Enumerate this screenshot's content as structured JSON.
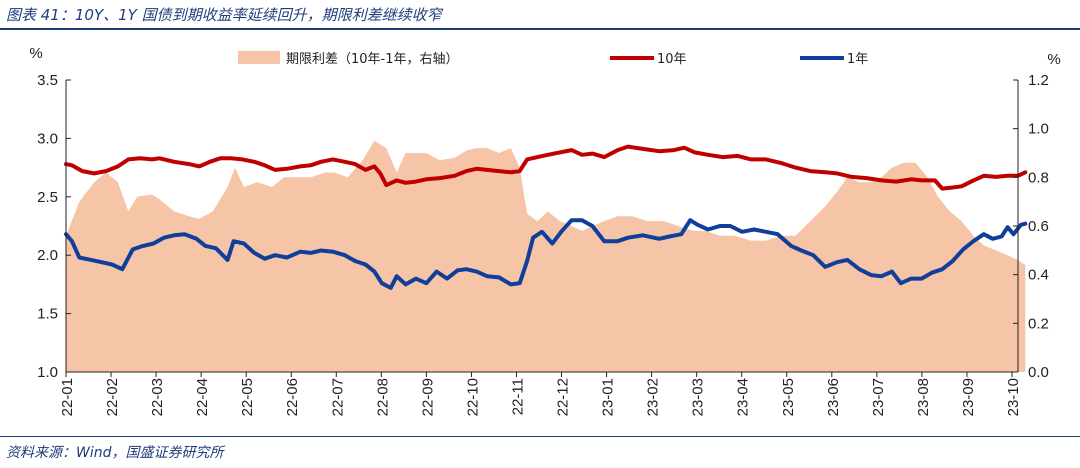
{
  "header": {
    "title": "图表 41：10Y、1Y 国债到期收益率延续回升，期限利差继续收窄"
  },
  "footer": {
    "source": "资料来源：Wind，国盛证券研究所"
  },
  "colors": {
    "spread_fill": "#f6c4a6",
    "line_10y": "#c00000",
    "line_1y": "#0f3f9b",
    "accent": "#1f3d7a"
  },
  "chart_data": {
    "type": "line",
    "left_axis": {
      "unit": "%",
      "ylim": [
        1.0,
        3.5
      ],
      "ticks": [
        "3.5",
        "3.0",
        "2.5",
        "2.0",
        "1.5",
        "1.0"
      ]
    },
    "right_axis": {
      "unit": "%",
      "ylim": [
        0.0,
        1.2
      ],
      "ticks": [
        "1.2",
        "1.0",
        "0.8",
        "0.6",
        "0.4",
        "0.2",
        "0.0"
      ]
    },
    "x_tick_labels": [
      "22-01",
      "22-02",
      "22-03",
      "22-04",
      "22-05",
      "22-06",
      "22-07",
      "22-08",
      "22-09",
      "22-10",
      "22-11",
      "22-12",
      "23-01",
      "23-02",
      "23-03",
      "23-04",
      "23-05",
      "23-06",
      "23-07",
      "23-08",
      "23-09",
      "23-10"
    ],
    "legend_position": "top",
    "grid": false,
    "series": [
      {
        "name": "期限利差（10年-1年，右轴）",
        "type": "area",
        "axis": "right",
        "points": [
          [
            "22-01-01",
            0.56
          ],
          [
            "22-01-10",
            0.7
          ],
          [
            "22-01-20",
            0.78
          ],
          [
            "22-01-28",
            0.82
          ],
          [
            "22-02-05",
            0.78
          ],
          [
            "22-02-12",
            0.66
          ],
          [
            "22-02-18",
            0.72
          ],
          [
            "22-02-28",
            0.73
          ],
          [
            "22-03-05",
            0.71
          ],
          [
            "22-03-15",
            0.66
          ],
          [
            "22-03-25",
            0.64
          ],
          [
            "22-04-01",
            0.63
          ],
          [
            "22-04-10",
            0.66
          ],
          [
            "22-04-20",
            0.76
          ],
          [
            "22-04-25",
            0.84
          ],
          [
            "22-05-01",
            0.76
          ],
          [
            "22-05-10",
            0.78
          ],
          [
            "22-05-20",
            0.76
          ],
          [
            "22-05-28",
            0.8
          ],
          [
            "22-06-05",
            0.8
          ],
          [
            "22-06-15",
            0.8
          ],
          [
            "22-06-25",
            0.82
          ],
          [
            "22-07-01",
            0.82
          ],
          [
            "22-07-10",
            0.8
          ],
          [
            "22-07-20",
            0.87
          ],
          [
            "22-07-28",
            0.95
          ],
          [
            "22-08-05",
            0.92
          ],
          [
            "22-08-12",
            0.82
          ],
          [
            "22-08-18",
            0.9
          ],
          [
            "22-08-25",
            0.9
          ],
          [
            "22-09-01",
            0.9
          ],
          [
            "22-09-10",
            0.87
          ],
          [
            "22-09-20",
            0.88
          ],
          [
            "22-09-28",
            0.91
          ],
          [
            "22-10-05",
            0.92
          ],
          [
            "22-10-12",
            0.92
          ],
          [
            "22-10-20",
            0.9
          ],
          [
            "22-10-28",
            0.92
          ],
          [
            "22-11-03",
            0.84
          ],
          [
            "22-11-08",
            0.65
          ],
          [
            "22-11-15",
            0.62
          ],
          [
            "22-11-22",
            0.66
          ],
          [
            "22-11-30",
            0.62
          ],
          [
            "22-12-08",
            0.6
          ],
          [
            "22-12-15",
            0.58
          ],
          [
            "22-12-22",
            0.6
          ],
          [
            "22-12-30",
            0.62
          ],
          [
            "23-01-08",
            0.64
          ],
          [
            "23-01-18",
            0.64
          ],
          [
            "23-01-28",
            0.62
          ],
          [
            "23-02-08",
            0.62
          ],
          [
            "23-02-18",
            0.6
          ],
          [
            "23-02-28",
            0.58
          ],
          [
            "23-03-08",
            0.58
          ],
          [
            "23-03-18",
            0.56
          ],
          [
            "23-03-28",
            0.56
          ],
          [
            "23-04-08",
            0.54
          ],
          [
            "23-04-18",
            0.54
          ],
          [
            "23-04-28",
            0.56
          ],
          [
            "23-05-08",
            0.56
          ],
          [
            "23-05-18",
            0.62
          ],
          [
            "23-05-28",
            0.68
          ],
          [
            "23-06-05",
            0.74
          ],
          [
            "23-06-12",
            0.8
          ],
          [
            "23-06-20",
            0.78
          ],
          [
            "23-06-28",
            0.78
          ],
          [
            "23-07-05",
            0.8
          ],
          [
            "23-07-12",
            0.84
          ],
          [
            "23-07-20",
            0.86
          ],
          [
            "23-07-28",
            0.86
          ],
          [
            "23-08-05",
            0.8
          ],
          [
            "23-08-12",
            0.72
          ],
          [
            "23-08-20",
            0.66
          ],
          [
            "23-08-28",
            0.62
          ],
          [
            "23-09-05",
            0.56
          ],
          [
            "23-09-12",
            0.52
          ],
          [
            "23-09-20",
            0.5
          ],
          [
            "23-09-28",
            0.48
          ],
          [
            "23-10-05",
            0.46
          ],
          [
            "23-10-10",
            0.44
          ]
        ]
      },
      {
        "name": "10年",
        "type": "line",
        "axis": "left",
        "points": [
          [
            "22-01-01",
            2.78
          ],
          [
            "22-01-05",
            2.77
          ],
          [
            "22-01-12",
            2.72
          ],
          [
            "22-01-20",
            2.7
          ],
          [
            "22-01-28",
            2.72
          ],
          [
            "22-02-05",
            2.76
          ],
          [
            "22-02-12",
            2.82
          ],
          [
            "22-02-20",
            2.83
          ],
          [
            "22-02-28",
            2.82
          ],
          [
            "22-03-05",
            2.83
          ],
          [
            "22-03-15",
            2.8
          ],
          [
            "22-03-25",
            2.78
          ],
          [
            "22-04-01",
            2.76
          ],
          [
            "22-04-08",
            2.8
          ],
          [
            "22-04-15",
            2.83
          ],
          [
            "22-04-22",
            2.83
          ],
          [
            "22-04-30",
            2.82
          ],
          [
            "22-05-08",
            2.8
          ],
          [
            "22-05-15",
            2.77
          ],
          [
            "22-05-22",
            2.73
          ],
          [
            "22-05-30",
            2.74
          ],
          [
            "22-06-08",
            2.76
          ],
          [
            "22-06-15",
            2.77
          ],
          [
            "22-06-22",
            2.8
          ],
          [
            "22-06-30",
            2.82
          ],
          [
            "22-07-08",
            2.8
          ],
          [
            "22-07-15",
            2.78
          ],
          [
            "22-07-22",
            2.73
          ],
          [
            "22-07-28",
            2.76
          ],
          [
            "22-08-01",
            2.7
          ],
          [
            "22-08-05",
            2.6
          ],
          [
            "22-08-12",
            2.64
          ],
          [
            "22-08-18",
            2.62
          ],
          [
            "22-08-25",
            2.63
          ],
          [
            "22-09-01",
            2.65
          ],
          [
            "22-09-10",
            2.66
          ],
          [
            "22-09-20",
            2.68
          ],
          [
            "22-09-28",
            2.72
          ],
          [
            "22-10-05",
            2.74
          ],
          [
            "22-10-12",
            2.73
          ],
          [
            "22-10-20",
            2.72
          ],
          [
            "22-10-28",
            2.71
          ],
          [
            "22-11-03",
            2.72
          ],
          [
            "22-11-08",
            2.82
          ],
          [
            "22-11-15",
            2.84
          ],
          [
            "22-11-22",
            2.86
          ],
          [
            "22-11-30",
            2.88
          ],
          [
            "22-12-08",
            2.9
          ],
          [
            "22-12-15",
            2.86
          ],
          [
            "22-12-22",
            2.87
          ],
          [
            "22-12-30",
            2.84
          ],
          [
            "23-01-08",
            2.9
          ],
          [
            "23-01-15",
            2.93
          ],
          [
            "23-01-25",
            2.91
          ],
          [
            "23-02-05",
            2.89
          ],
          [
            "23-02-15",
            2.9
          ],
          [
            "23-02-22",
            2.92
          ],
          [
            "23-03-01",
            2.88
          ],
          [
            "23-03-10",
            2.86
          ],
          [
            "23-03-20",
            2.84
          ],
          [
            "23-03-30",
            2.85
          ],
          [
            "23-04-08",
            2.82
          ],
          [
            "23-04-18",
            2.82
          ],
          [
            "23-04-28",
            2.79
          ],
          [
            "23-05-08",
            2.75
          ],
          [
            "23-05-18",
            2.72
          ],
          [
            "23-05-28",
            2.71
          ],
          [
            "23-06-05",
            2.7
          ],
          [
            "23-06-15",
            2.67
          ],
          [
            "23-06-25",
            2.66
          ],
          [
            "23-07-05",
            2.64
          ],
          [
            "23-07-15",
            2.63
          ],
          [
            "23-07-25",
            2.65
          ],
          [
            "23-08-01",
            2.64
          ],
          [
            "23-08-10",
            2.64
          ],
          [
            "23-08-15",
            2.57
          ],
          [
            "23-08-22",
            2.58
          ],
          [
            "23-08-28",
            2.59
          ],
          [
            "23-09-05",
            2.64
          ],
          [
            "23-09-12",
            2.68
          ],
          [
            "23-09-20",
            2.67
          ],
          [
            "23-09-28",
            2.68
          ],
          [
            "23-10-05",
            2.68
          ],
          [
            "23-10-10",
            2.71
          ]
        ]
      },
      {
        "name": "1年",
        "type": "line",
        "axis": "left",
        "points": [
          [
            "22-01-01",
            2.18
          ],
          [
            "22-01-05",
            2.12
          ],
          [
            "22-01-10",
            1.98
          ],
          [
            "22-01-18",
            1.96
          ],
          [
            "22-01-25",
            1.94
          ],
          [
            "22-02-01",
            1.92
          ],
          [
            "22-02-08",
            1.88
          ],
          [
            "22-02-15",
            2.05
          ],
          [
            "22-02-22",
            2.08
          ],
          [
            "22-03-01",
            2.1
          ],
          [
            "22-03-08",
            2.15
          ],
          [
            "22-03-15",
            2.17
          ],
          [
            "22-03-22",
            2.18
          ],
          [
            "22-03-30",
            2.14
          ],
          [
            "22-04-05",
            2.08
          ],
          [
            "22-04-12",
            2.06
          ],
          [
            "22-04-20",
            1.96
          ],
          [
            "22-04-24",
            2.12
          ],
          [
            "22-05-01",
            2.1
          ],
          [
            "22-05-08",
            2.02
          ],
          [
            "22-05-15",
            1.97
          ],
          [
            "22-05-22",
            2.0
          ],
          [
            "22-05-30",
            1.98
          ],
          [
            "22-06-08",
            2.03
          ],
          [
            "22-06-15",
            2.02
          ],
          [
            "22-06-22",
            2.04
          ],
          [
            "22-06-30",
            2.03
          ],
          [
            "22-07-08",
            2.0
          ],
          [
            "22-07-15",
            1.95
          ],
          [
            "22-07-22",
            1.92
          ],
          [
            "22-07-28",
            1.86
          ],
          [
            "22-08-02",
            1.76
          ],
          [
            "22-08-08",
            1.72
          ],
          [
            "22-08-12",
            1.82
          ],
          [
            "22-08-18",
            1.75
          ],
          [
            "22-08-25",
            1.8
          ],
          [
            "22-09-01",
            1.76
          ],
          [
            "22-09-08",
            1.86
          ],
          [
            "22-09-15",
            1.8
          ],
          [
            "22-09-22",
            1.87
          ],
          [
            "22-09-28",
            1.88
          ],
          [
            "22-10-05",
            1.86
          ],
          [
            "22-10-12",
            1.82
          ],
          [
            "22-10-20",
            1.81
          ],
          [
            "22-10-28",
            1.75
          ],
          [
            "22-11-03",
            1.76
          ],
          [
            "22-11-08",
            1.95
          ],
          [
            "22-11-12",
            2.15
          ],
          [
            "22-11-18",
            2.2
          ],
          [
            "22-11-25",
            2.1
          ],
          [
            "22-12-01",
            2.2
          ],
          [
            "22-12-08",
            2.3
          ],
          [
            "22-12-15",
            2.3
          ],
          [
            "22-12-22",
            2.25
          ],
          [
            "22-12-30",
            2.12
          ],
          [
            "23-01-08",
            2.12
          ],
          [
            "23-01-15",
            2.15
          ],
          [
            "23-01-25",
            2.17
          ],
          [
            "23-02-05",
            2.14
          ],
          [
            "23-02-12",
            2.16
          ],
          [
            "23-02-20",
            2.18
          ],
          [
            "23-02-26",
            2.3
          ],
          [
            "23-03-03",
            2.26
          ],
          [
            "23-03-10",
            2.22
          ],
          [
            "23-03-18",
            2.25
          ],
          [
            "23-03-25",
            2.25
          ],
          [
            "23-04-02",
            2.2
          ],
          [
            "23-04-10",
            2.22
          ],
          [
            "23-04-18",
            2.2
          ],
          [
            "23-04-26",
            2.18
          ],
          [
            "23-05-05",
            2.08
          ],
          [
            "23-05-12",
            2.04
          ],
          [
            "23-05-20",
            2.0
          ],
          [
            "23-05-28",
            1.9
          ],
          [
            "23-06-05",
            1.94
          ],
          [
            "23-06-12",
            1.96
          ],
          [
            "23-06-20",
            1.88
          ],
          [
            "23-06-28",
            1.83
          ],
          [
            "23-07-05",
            1.82
          ],
          [
            "23-07-12",
            1.86
          ],
          [
            "23-07-18",
            1.76
          ],
          [
            "23-07-25",
            1.8
          ],
          [
            "23-08-01",
            1.8
          ],
          [
            "23-08-08",
            1.85
          ],
          [
            "23-08-15",
            1.88
          ],
          [
            "23-08-22",
            1.95
          ],
          [
            "23-08-29",
            2.05
          ],
          [
            "23-09-05",
            2.12
          ],
          [
            "23-09-12",
            2.18
          ],
          [
            "23-09-18",
            2.14
          ],
          [
            "23-09-24",
            2.16
          ],
          [
            "23-09-28",
            2.24
          ],
          [
            "23-10-02",
            2.18
          ],
          [
            "23-10-07",
            2.26
          ],
          [
            "23-10-10",
            2.27
          ]
        ]
      }
    ]
  }
}
